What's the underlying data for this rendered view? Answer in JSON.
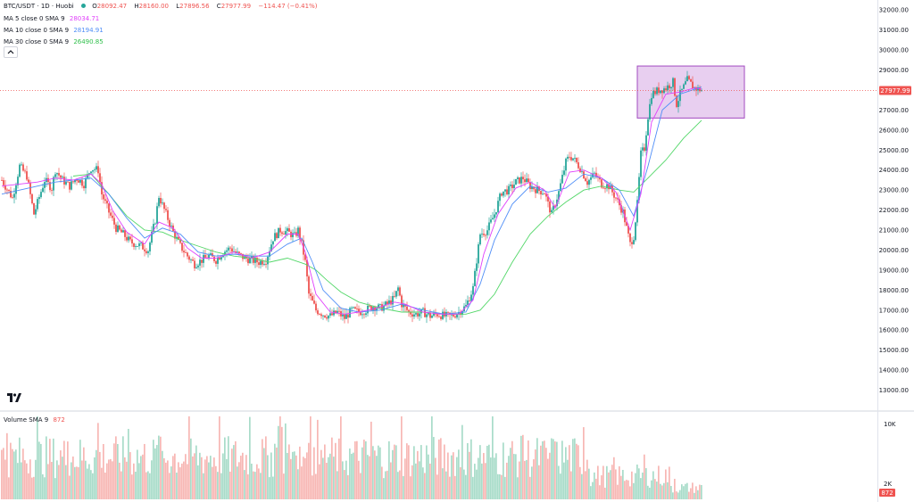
{
  "header": {
    "symbol": "BTC/USDT · 1D · Huobi",
    "ohlc": [
      {
        "key": "O",
        "value": "28092.47"
      },
      {
        "key": "H",
        "value": "28160.00"
      },
      {
        "key": "L",
        "value": "27896.56"
      },
      {
        "key": "C",
        "value": "27977.99"
      }
    ],
    "change": "−114.47 (−0.41%)"
  },
  "indicators": [
    {
      "label": "MA 5 close 0 SMA 9",
      "value": "28034.71",
      "color": "#e040fb"
    },
    {
      "label": "MA 10 close 0 SMA 9",
      "value": "28194.91",
      "color": "#4f8ef7"
    },
    {
      "label": "MA 30 close 0 SMA 9",
      "value": "26490.85",
      "color": "#53d769"
    }
  ],
  "volume_legend": {
    "label": "Volume SMA 9",
    "value": "872"
  },
  "colors": {
    "up": "#26a69a",
    "down": "#ef5350",
    "vol_up": "#a8dcc9",
    "vol_down": "#f7b7b4",
    "ma5": "#e040fb",
    "ma10": "#4f8ef7",
    "ma30": "#53d769",
    "highlight_fill": "#dcb6e8",
    "highlight_stroke": "#a24bc0",
    "price_line": "#ef5350",
    "axis_text": "#131722"
  },
  "chart_data": {
    "type": "candlestick",
    "title": "BTC/USDT · 1D · Huobi",
    "ylim": [
      12000,
      32500
    ],
    "y_ticks": [
      "13000.00",
      "14000.00",
      "15000.00",
      "16000.00",
      "17000.00",
      "18000.00",
      "19000.00",
      "20000.00",
      "21000.00",
      "22000.00",
      "23000.00",
      "24000.00",
      "25000.00",
      "26000.00",
      "27000.00",
      "28000.00",
      "29000.00",
      "30000.00",
      "31000.00",
      "32000.00"
    ],
    "last_price": 27977.99,
    "last_price_label": "27977.99",
    "close_path": [
      [
        0,
        23500
      ],
      [
        6,
        22600
      ],
      [
        10,
        24200
      ],
      [
        14,
        23700
      ],
      [
        18,
        21800
      ],
      [
        24,
        23500
      ],
      [
        28,
        23100
      ],
      [
        30,
        24000
      ],
      [
        34,
        23500
      ],
      [
        38,
        23200
      ],
      [
        42,
        23600
      ],
      [
        46,
        23300
      ],
      [
        50,
        24100
      ],
      [
        54,
        24000
      ],
      [
        56,
        22800
      ],
      [
        60,
        21900
      ],
      [
        64,
        21100
      ],
      [
        68,
        20800
      ],
      [
        72,
        20400
      ],
      [
        78,
        20200
      ],
      [
        82,
        20000
      ],
      [
        86,
        21500
      ],
      [
        88,
        22700
      ],
      [
        92,
        21800
      ],
      [
        96,
        20900
      ],
      [
        100,
        20200
      ],
      [
        104,
        19700
      ],
      [
        108,
        19300
      ],
      [
        112,
        19500
      ],
      [
        116,
        19700
      ],
      [
        120,
        19500
      ],
      [
        124,
        19900
      ],
      [
        128,
        20100
      ],
      [
        132,
        19800
      ],
      [
        136,
        19600
      ],
      [
        140,
        19500
      ],
      [
        144,
        19400
      ],
      [
        148,
        19500
      ],
      [
        152,
        20600
      ],
      [
        156,
        21000
      ],
      [
        160,
        20900
      ],
      [
        164,
        20700
      ],
      [
        166,
        21000
      ],
      [
        168,
        20300
      ],
      [
        170,
        19400
      ],
      [
        172,
        17800
      ],
      [
        176,
        17000
      ],
      [
        180,
        16800
      ],
      [
        184,
        16700
      ],
      [
        188,
        16900
      ],
      [
        192,
        16600
      ],
      [
        196,
        17000
      ],
      [
        200,
        16900
      ],
      [
        204,
        17000
      ],
      [
        208,
        17200
      ],
      [
        212,
        17100
      ],
      [
        216,
        17300
      ],
      [
        220,
        17600
      ],
      [
        222,
        18100
      ],
      [
        224,
        17300
      ],
      [
        228,
        16900
      ],
      [
        232,
        16800
      ],
      [
        236,
        16900
      ],
      [
        240,
        16700
      ],
      [
        244,
        16800
      ],
      [
        248,
        16700
      ],
      [
        252,
        16700
      ],
      [
        256,
        16900
      ],
      [
        260,
        17200
      ],
      [
        264,
        18100
      ],
      [
        266,
        19500
      ],
      [
        268,
        20800
      ],
      [
        272,
        21000
      ],
      [
        276,
        21800
      ],
      [
        280,
        22900
      ],
      [
        284,
        23000
      ],
      [
        288,
        23400
      ],
      [
        292,
        23600
      ],
      [
        296,
        23200
      ],
      [
        300,
        23000
      ],
      [
        304,
        22900
      ],
      [
        306,
        22300
      ],
      [
        308,
        21800
      ],
      [
        312,
        22900
      ],
      [
        316,
        24400
      ],
      [
        318,
        24700
      ],
      [
        320,
        24600
      ],
      [
        324,
        24100
      ],
      [
        328,
        23400
      ],
      [
        332,
        23800
      ],
      [
        336,
        23300
      ],
      [
        340,
        23200
      ],
      [
        344,
        22600
      ],
      [
        348,
        21900
      ],
      [
        352,
        20300
      ],
      [
        354,
        20700
      ],
      [
        356,
        22300
      ],
      [
        358,
        24800
      ],
      [
        360,
        25100
      ],
      [
        362,
        26700
      ],
      [
        364,
        27800
      ],
      [
        368,
        28000
      ],
      [
        372,
        28100
      ],
      [
        376,
        28400
      ],
      [
        378,
        27300
      ],
      [
        380,
        27800
      ],
      [
        384,
        28500
      ],
      [
        388,
        28100
      ],
      [
        392,
        28000
      ]
    ],
    "ma5_path": [
      [
        0,
        23200
      ],
      [
        10,
        23300
      ],
      [
        20,
        23400
      ],
      [
        30,
        23600
      ],
      [
        40,
        23500
      ],
      [
        50,
        23800
      ],
      [
        56,
        23300
      ],
      [
        62,
        22000
      ],
      [
        70,
        20900
      ],
      [
        80,
        20300
      ],
      [
        88,
        21400
      ],
      [
        96,
        21100
      ],
      [
        104,
        20100
      ],
      [
        112,
        19600
      ],
      [
        120,
        19600
      ],
      [
        130,
        19900
      ],
      [
        140,
        19600
      ],
      [
        150,
        19900
      ],
      [
        160,
        20800
      ],
      [
        166,
        20800
      ],
      [
        170,
        19900
      ],
      [
        176,
        17800
      ],
      [
        184,
        16900
      ],
      [
        192,
        16800
      ],
      [
        200,
        16900
      ],
      [
        210,
        17100
      ],
      [
        220,
        17400
      ],
      [
        226,
        17300
      ],
      [
        236,
        16900
      ],
      [
        246,
        16800
      ],
      [
        256,
        16800
      ],
      [
        264,
        17500
      ],
      [
        270,
        19800
      ],
      [
        278,
        21800
      ],
      [
        288,
        23100
      ],
      [
        296,
        23400
      ],
      [
        304,
        23000
      ],
      [
        310,
        22100
      ],
      [
        318,
        23900
      ],
      [
        326,
        24000
      ],
      [
        336,
        23600
      ],
      [
        344,
        22900
      ],
      [
        352,
        21000
      ],
      [
        358,
        22800
      ],
      [
        364,
        26400
      ],
      [
        372,
        27800
      ],
      [
        380,
        27900
      ],
      [
        388,
        28100
      ],
      [
        392,
        28050
      ]
    ],
    "ma10_path": [
      [
        0,
        22800
      ],
      [
        10,
        23000
      ],
      [
        20,
        23200
      ],
      [
        30,
        23400
      ],
      [
        40,
        23500
      ],
      [
        50,
        23600
      ],
      [
        60,
        22800
      ],
      [
        70,
        21600
      ],
      [
        80,
        20600
      ],
      [
        90,
        21100
      ],
      [
        100,
        20800
      ],
      [
        110,
        19900
      ],
      [
        120,
        19700
      ],
      [
        130,
        19800
      ],
      [
        140,
        19700
      ],
      [
        150,
        19700
      ],
      [
        160,
        20300
      ],
      [
        168,
        20600
      ],
      [
        174,
        19400
      ],
      [
        180,
        18000
      ],
      [
        190,
        17100
      ],
      [
        200,
        16900
      ],
      [
        212,
        17000
      ],
      [
        224,
        17300
      ],
      [
        236,
        17000
      ],
      [
        248,
        16800
      ],
      [
        260,
        16900
      ],
      [
        268,
        18300
      ],
      [
        276,
        20500
      ],
      [
        286,
        22300
      ],
      [
        296,
        23200
      ],
      [
        306,
        22900
      ],
      [
        316,
        23100
      ],
      [
        326,
        23800
      ],
      [
        336,
        23600
      ],
      [
        346,
        23000
      ],
      [
        354,
        21700
      ],
      [
        362,
        24200
      ],
      [
        370,
        27000
      ],
      [
        380,
        27800
      ],
      [
        392,
        28150
      ]
    ],
    "ma30_path": [
      [
        40,
        23700
      ],
      [
        50,
        23800
      ],
      [
        60,
        22800
      ],
      [
        70,
        21700
      ],
      [
        80,
        21000
      ],
      [
        90,
        20900
      ],
      [
        100,
        20500
      ],
      [
        110,
        20200
      ],
      [
        120,
        19900
      ],
      [
        130,
        19700
      ],
      [
        140,
        19600
      ],
      [
        150,
        19400
      ],
      [
        160,
        19600
      ],
      [
        170,
        19300
      ],
      [
        176,
        19000
      ],
      [
        182,
        18500
      ],
      [
        190,
        17900
      ],
      [
        200,
        17400
      ],
      [
        212,
        17100
      ],
      [
        224,
        16900
      ],
      [
        236,
        16900
      ],
      [
        248,
        16800
      ],
      [
        260,
        16800
      ],
      [
        268,
        17000
      ],
      [
        276,
        17800
      ],
      [
        286,
        19400
      ],
      [
        296,
        20800
      ],
      [
        306,
        21700
      ],
      [
        316,
        22400
      ],
      [
        326,
        23000
      ],
      [
        336,
        23200
      ],
      [
        346,
        23000
      ],
      [
        354,
        22900
      ],
      [
        362,
        23600
      ],
      [
        372,
        24500
      ],
      [
        382,
        25600
      ],
      [
        392,
        26490
      ]
    ],
    "highlight": {
      "x_start": 356,
      "x_end": 416,
      "price_low": 26600,
      "price_high": 29200
    },
    "volume": {
      "ylim": [
        0,
        10000
      ],
      "ticks": [
        "10K",
        "2K"
      ],
      "sma_value": "872"
    }
  }
}
